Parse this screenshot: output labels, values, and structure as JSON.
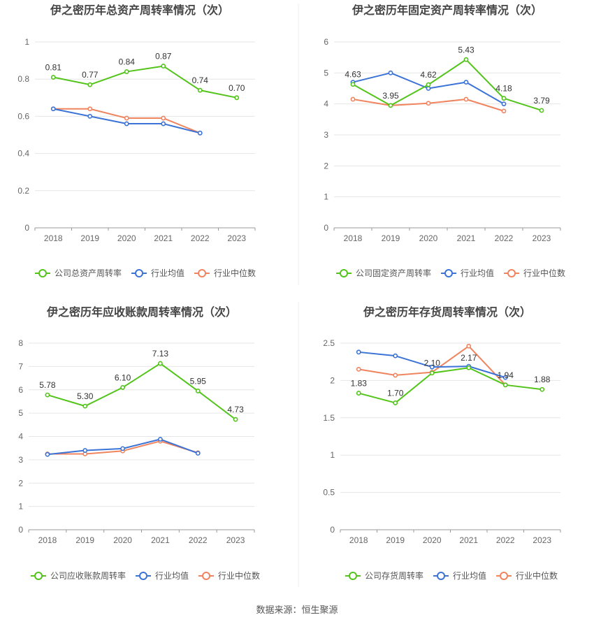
{
  "source": "数据来源：恒生聚源",
  "colors": {
    "company": "#52c41a",
    "avg": "#3b73d6",
    "median": "#f0845f",
    "grid": "#e6e6e6",
    "divider": "#ececec"
  },
  "chart_data": [
    {
      "type": "line",
      "title": "伊之密历年总资产周转率情况（次）",
      "categories": [
        "2018",
        "2019",
        "2020",
        "2021",
        "2022",
        "2023"
      ],
      "ylim": [
        0,
        1
      ],
      "yticks": [
        "0",
        "0.2",
        "0.4",
        "0.6",
        "0.8",
        "1"
      ],
      "series": [
        {
          "name": "公司总资产周转率",
          "values": [
            0.81,
            0.77,
            0.84,
            0.87,
            0.74,
            0.7
          ],
          "labels": [
            "0.81",
            "0.77",
            "0.84",
            "0.87",
            "0.74",
            "0.70"
          ]
        },
        {
          "name": "行业均值",
          "values": [
            0.64,
            0.6,
            0.56,
            0.56,
            0.51,
            null
          ]
        },
        {
          "name": "行业中位数",
          "values": [
            0.64,
            0.64,
            0.59,
            0.59,
            0.51,
            null
          ]
        }
      ]
    },
    {
      "type": "line",
      "title": "伊之密历年固定资产周转率情况（次）",
      "categories": [
        "2018",
        "2019",
        "2020",
        "2021",
        "2022",
        "2023"
      ],
      "ylim": [
        0,
        6
      ],
      "yticks": [
        "0",
        "1",
        "2",
        "3",
        "4",
        "5",
        "6"
      ],
      "series": [
        {
          "name": "公司固定资产周转率",
          "values": [
            4.63,
            3.95,
            4.62,
            5.43,
            4.18,
            3.79
          ],
          "labels": [
            "4.63",
            "3.95",
            "4.62",
            "5.43",
            "4.18",
            "3.79"
          ]
        },
        {
          "name": "行业均值",
          "values": [
            4.7,
            5.0,
            4.5,
            4.7,
            4.0,
            null
          ]
        },
        {
          "name": "行业中位数",
          "values": [
            4.15,
            3.95,
            4.02,
            4.15,
            3.77,
            null
          ]
        }
      ]
    },
    {
      "type": "line",
      "title": "伊之密历年应收账款周转率情况（次）",
      "categories": [
        "2018",
        "2019",
        "2020",
        "2021",
        "2022",
        "2023"
      ],
      "ylim": [
        0,
        8
      ],
      "yticks": [
        "0",
        "1",
        "2",
        "3",
        "4",
        "5",
        "6",
        "7",
        "8"
      ],
      "series": [
        {
          "name": "公司应收账款周转率",
          "values": [
            5.78,
            5.3,
            6.1,
            7.13,
            5.95,
            4.73
          ],
          "labels": [
            "5.78",
            "5.30",
            "6.10",
            "7.13",
            "5.95",
            "4.73"
          ]
        },
        {
          "name": "行业均值",
          "values": [
            3.23,
            3.4,
            3.48,
            3.88,
            3.28,
            null
          ]
        },
        {
          "name": "行业中位数",
          "values": [
            3.25,
            3.25,
            3.38,
            3.8,
            3.3,
            null
          ]
        }
      ]
    },
    {
      "type": "line",
      "title": "伊之密历年存货周转率情况（次）",
      "categories": [
        "2018",
        "2019",
        "2020",
        "2021",
        "2022",
        "2023"
      ],
      "ylim": [
        0,
        2.5
      ],
      "yticks": [
        "0",
        "0.5",
        "1",
        "1.5",
        "2",
        "2.5"
      ],
      "series": [
        {
          "name": "公司存货周转率",
          "values": [
            1.83,
            1.7,
            2.1,
            2.17,
            1.94,
            1.88
          ],
          "labels": [
            "1.83",
            "1.70",
            "2.10",
            "2.17",
            "1.94",
            "1.88"
          ]
        },
        {
          "name": "行业均值",
          "values": [
            2.38,
            2.33,
            2.18,
            2.19,
            2.04,
            null
          ]
        },
        {
          "name": "行业中位数",
          "values": [
            2.15,
            2.07,
            2.11,
            2.46,
            1.94,
            null
          ]
        }
      ]
    }
  ]
}
